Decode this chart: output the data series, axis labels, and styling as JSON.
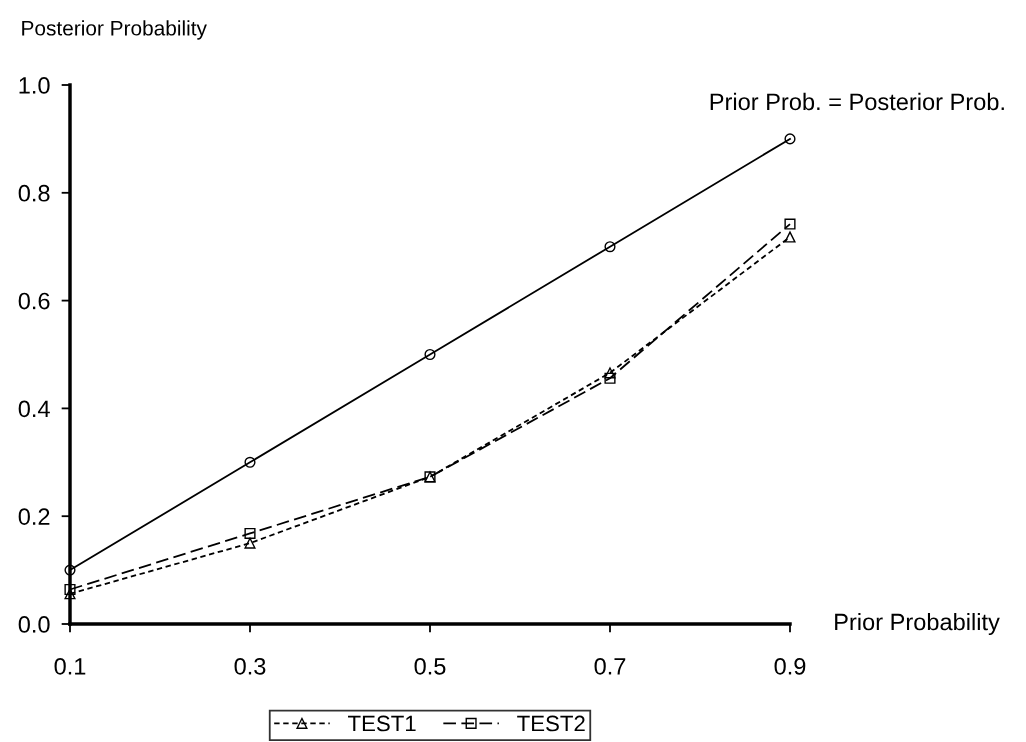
{
  "chart_data": {
    "type": "line",
    "ylabel": "Posterior Probability",
    "xlabel": "Prior Probability",
    "x": [
      0.1,
      0.3,
      0.5,
      0.7,
      0.9
    ],
    "series": [
      {
        "color": "#000000",
        "marker": "circle",
        "line_style": "solid",
        "values": [
          0.1,
          0.3,
          0.5,
          0.7,
          0.9
        ]
      },
      {
        "name": "TEST1",
        "color": "#000000",
        "marker": "triangle",
        "line_style": "dotted",
        "values": [
          0.056,
          0.15,
          0.273,
          0.466,
          0.718
        ]
      },
      {
        "name": "TEST2",
        "color": "#000000",
        "marker": "square",
        "line_style": "dashed",
        "values": [
          0.064,
          0.168,
          0.273,
          0.456,
          0.742
        ]
      }
    ],
    "annotations": [
      "Prior Prob. = Posterior Prob."
    ],
    "xlim": [
      0.1,
      0.9
    ],
    "xticks": [
      0.1,
      0.3,
      0.5,
      0.7,
      0.9
    ],
    "ylim": [
      0.0,
      1.0
    ],
    "yticks": [
      {
        "value": 0.0,
        "label": "0.0"
      },
      0.2,
      0.4,
      0.6,
      0.8,
      {
        "value": 1.0,
        "label": "1.0"
      }
    ],
    "grid": false,
    "legend": "bottom"
  }
}
